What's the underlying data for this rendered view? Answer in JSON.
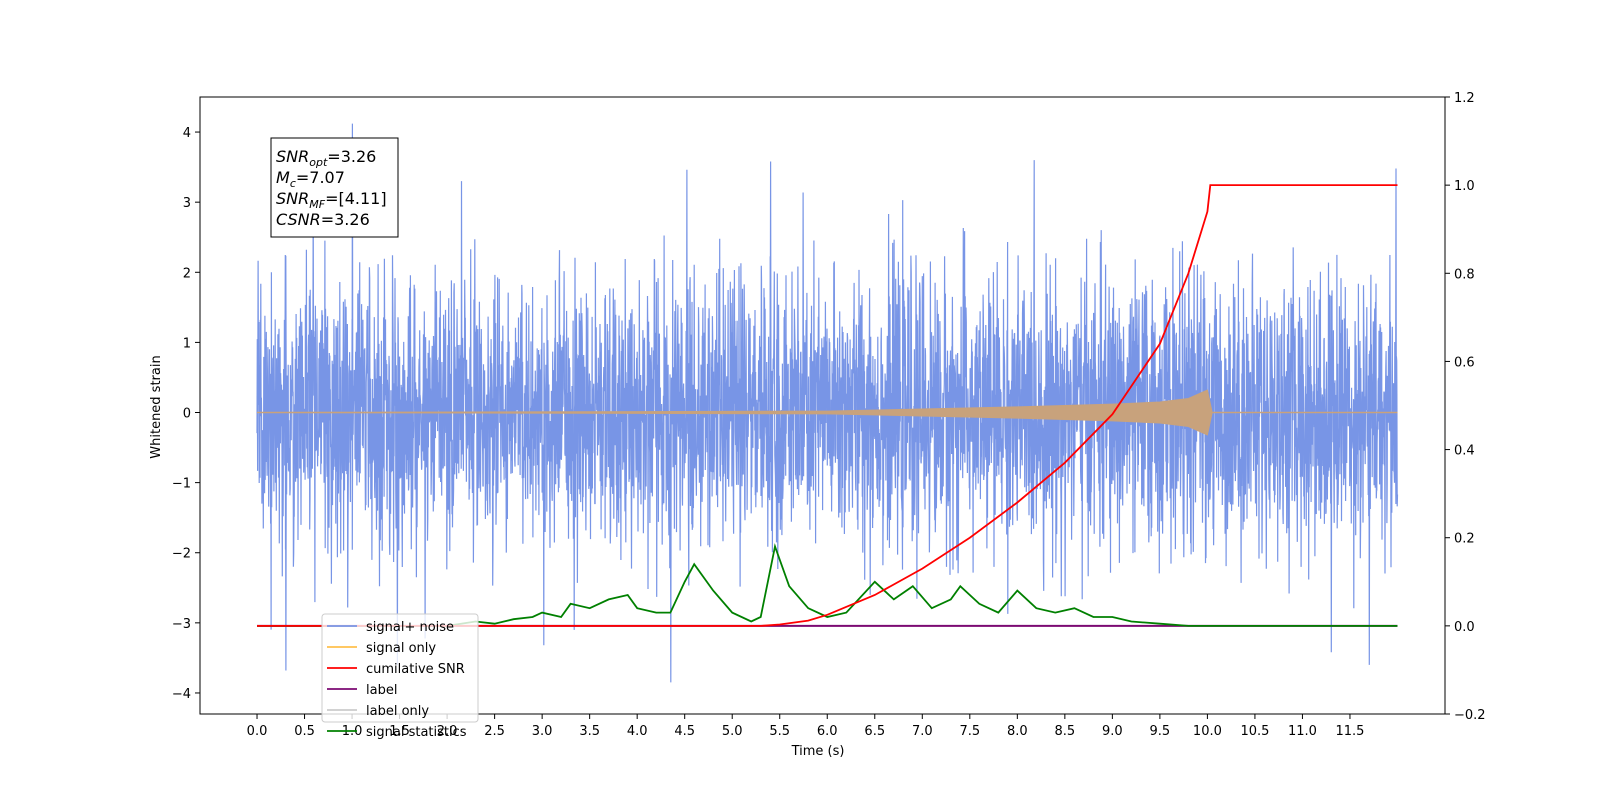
{
  "chart_data": {
    "type": "line",
    "xlabel": "Time (s)",
    "ylabel": "Whitened strain",
    "xlim": [
      -0.6,
      12.5
    ],
    "ylim": [
      -4.3,
      4.5
    ],
    "y2lim": [
      -0.2,
      1.2
    ],
    "x_ticks": [
      0.0,
      0.5,
      1.0,
      1.5,
      2.0,
      2.5,
      3.0,
      3.5,
      4.0,
      4.5,
      5.0,
      5.5,
      6.0,
      6.5,
      7.0,
      7.5,
      8.0,
      8.5,
      9.0,
      9.5,
      10.0,
      10.5,
      11.0,
      11.5
    ],
    "x_tick_labels": [
      "0.0",
      "0.5",
      "1.0",
      "1.5",
      "2.0",
      "2.5",
      "3.0",
      "3.5",
      "4.0",
      "4.5",
      "5.0",
      "5.5",
      "6.0",
      "6.5",
      "7.0",
      "7.5",
      "8.0",
      "8.5",
      "9.0",
      "9.5",
      "10.0",
      "10.5",
      "11.0",
      "11.5"
    ],
    "y_ticks": [
      -4,
      -3,
      -2,
      -1,
      0,
      1,
      2,
      3,
      4
    ],
    "y_tick_labels": [
      "−4",
      "−3",
      "−2",
      "−1",
      "0",
      "1",
      "2",
      "3",
      "4"
    ],
    "y2_ticks": [
      -0.2,
      0.0,
      0.2,
      0.4,
      0.6,
      0.8,
      1.0,
      1.2
    ],
    "y2_tick_labels": [
      "−0.2",
      "0.0",
      "0.2",
      "0.4",
      "0.6",
      "0.8",
      "1.0",
      "1.2"
    ],
    "grid": false,
    "legend_position": "lower-left",
    "series": [
      {
        "name": "signal+ noise",
        "color": "#7895e6",
        "axis": "left",
        "description_of_values": "whitened strain noise, unit variance, extremes near ±4",
        "x_range": [
          0.0,
          12.0
        ],
        "amplitude_typical": 2.4,
        "peaks": [
          [
            1.0,
            4.12
          ],
          [
            0.3,
            -3.68
          ],
          [
            4.35,
            -3.85
          ],
          [
            11.3,
            -3.42
          ],
          [
            11.7,
            -3.6
          ],
          [
            5.4,
            3.58
          ],
          [
            11.98,
            3.48
          ]
        ]
      },
      {
        "name": "signal only",
        "color": "#c8a27c",
        "axis": "left",
        "x": [
          0.0,
          6.0,
          7.0,
          8.0,
          8.5,
          9.0,
          9.5,
          9.8,
          10.0,
          10.05,
          12.0
        ],
        "envelope": [
          0.0,
          0.02,
          0.05,
          0.08,
          0.1,
          0.12,
          0.15,
          0.2,
          0.32,
          0.0,
          0.0
        ]
      },
      {
        "name": "cumilative SNR",
        "color": "#ff0000",
        "axis": "right",
        "x": [
          0.0,
          5.3,
          5.5,
          5.8,
          6.0,
          6.5,
          7.0,
          7.5,
          8.0,
          8.5,
          9.0,
          9.5,
          9.8,
          10.0,
          10.03,
          12.0
        ],
        "values": [
          0.0,
          0.0,
          0.003,
          0.012,
          0.025,
          0.07,
          0.13,
          0.2,
          0.28,
          0.37,
          0.48,
          0.64,
          0.8,
          0.94,
          1.0,
          1.0
        ]
      },
      {
        "name": "label",
        "color": "#7b0a72",
        "axis": "right",
        "x": [
          0.0,
          12.0
        ],
        "values": [
          0.0,
          0.0
        ]
      },
      {
        "name": "label only",
        "color": "#cccccc",
        "axis": "right",
        "x": [],
        "values": []
      },
      {
        "name": "signal statistics",
        "color": "#008000",
        "axis": "right",
        "x": [
          0.0,
          2.0,
          2.3,
          2.5,
          2.7,
          2.9,
          3.0,
          3.2,
          3.3,
          3.5,
          3.7,
          3.9,
          4.0,
          4.2,
          4.35,
          4.5,
          4.6,
          4.8,
          5.0,
          5.2,
          5.3,
          5.45,
          5.6,
          5.8,
          6.0,
          6.2,
          6.5,
          6.7,
          6.9,
          7.1,
          7.3,
          7.4,
          7.6,
          7.8,
          8.0,
          8.2,
          8.4,
          8.6,
          8.8,
          9.0,
          9.2,
          9.5,
          9.8,
          12.0
        ],
        "values": [
          0.0,
          0.0,
          0.01,
          0.005,
          0.015,
          0.02,
          0.03,
          0.02,
          0.05,
          0.04,
          0.06,
          0.07,
          0.04,
          0.03,
          0.03,
          0.1,
          0.14,
          0.08,
          0.03,
          0.01,
          0.02,
          0.18,
          0.09,
          0.04,
          0.02,
          0.03,
          0.1,
          0.06,
          0.09,
          0.04,
          0.06,
          0.09,
          0.05,
          0.03,
          0.08,
          0.04,
          0.03,
          0.04,
          0.02,
          0.02,
          0.01,
          0.005,
          0.0,
          0.0
        ]
      }
    ],
    "annotation": [
      {
        "main": "SNR",
        "sub": "opt",
        "rest": "=3.26"
      },
      {
        "main": "M",
        "sub": "c",
        "rest": "=7.07"
      },
      {
        "main": "SNR",
        "sub": "MF",
        "rest": "=[4.11]"
      },
      {
        "main": "CSNR",
        "sub": "",
        "rest": "=3.26"
      }
    ]
  }
}
